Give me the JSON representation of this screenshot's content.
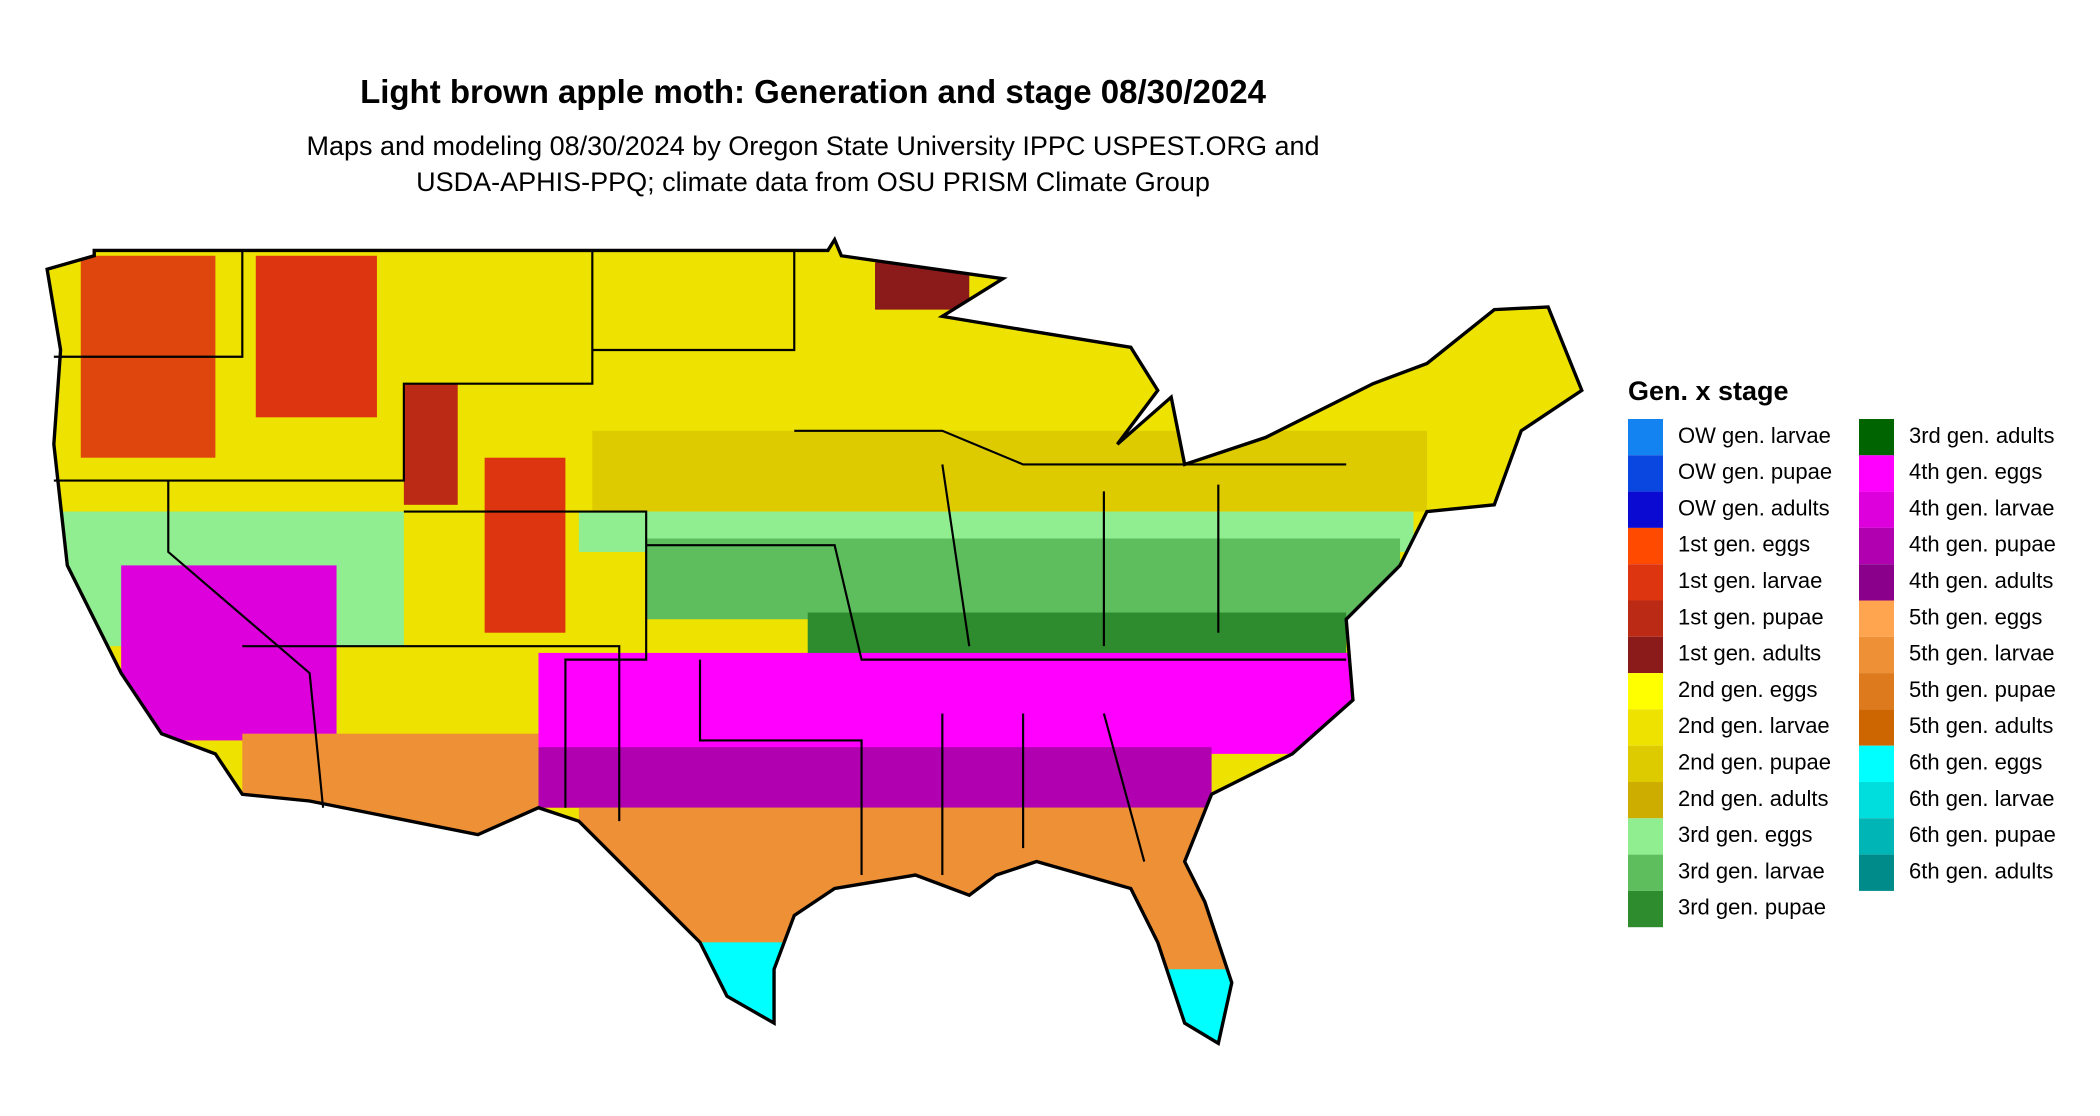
{
  "header": {
    "title": "Light brown apple moth: Generation and stage 08/30/2024",
    "subtitle_lines": [
      "Maps and modeling 08/30/2024 by Oregon State University IPPC USPEST.ORG and",
      "USDA-APHIS-PPQ; climate data from OSU PRISM Climate Group"
    ]
  },
  "legend": {
    "title": "Gen. x stage",
    "items": [
      {
        "label": "OW gen. larvae",
        "color": "#1283f0"
      },
      {
        "label": "OW gen. pupae",
        "color": "#0a46e0"
      },
      {
        "label": "OW gen. adults",
        "color": "#0a0ad2"
      },
      {
        "label": "1st gen. eggs",
        "color": "#ff4a00"
      },
      {
        "label": "1st gen. larvae",
        "color": "#dd3510"
      },
      {
        "label": "1st gen. pupae",
        "color": "#bb2a15"
      },
      {
        "label": "1st gen. adults",
        "color": "#8b1a1a"
      },
      {
        "label": "2nd gen. eggs",
        "color": "#ffff00"
      },
      {
        "label": "2nd gen. larvae",
        "color": "#eee200"
      },
      {
        "label": "2nd gen. pupae",
        "color": "#ddcb00"
      },
      {
        "label": "2nd gen. adults",
        "color": "#cdad00"
      },
      {
        "label": "3rd gen. eggs",
        "color": "#90ee90"
      },
      {
        "label": "3rd gen. larvae",
        "color": "#5ebe5e"
      },
      {
        "label": "3rd gen. pupae",
        "color": "#2e8b2e"
      },
      {
        "label": "3rd gen. adults",
        "color": "#006400"
      },
      {
        "label": "4th gen. eggs",
        "color": "#ff00ff"
      },
      {
        "label": "4th gen. larvae",
        "color": "#dd00dd"
      },
      {
        "label": "4th gen. pupae",
        "color": "#b000b0"
      },
      {
        "label": "4th gen. adults",
        "color": "#8b008b"
      },
      {
        "label": "5th gen. eggs",
        "color": "#ffa54f"
      },
      {
        "label": "5th gen. larvae",
        "color": "#ee9035"
      },
      {
        "label": "5th gen. pupae",
        "color": "#dd7a1d"
      },
      {
        "label": "5th gen. adults",
        "color": "#cd6600"
      },
      {
        "label": "6th gen. eggs",
        "color": "#00ffff"
      },
      {
        "label": "6th gen. larvae",
        "color": "#00dddd"
      },
      {
        "label": "6th gen. pupae",
        "color": "#00b5b5"
      },
      {
        "label": "6th gen. adults",
        "color": "#008b8b"
      }
    ]
  }
}
